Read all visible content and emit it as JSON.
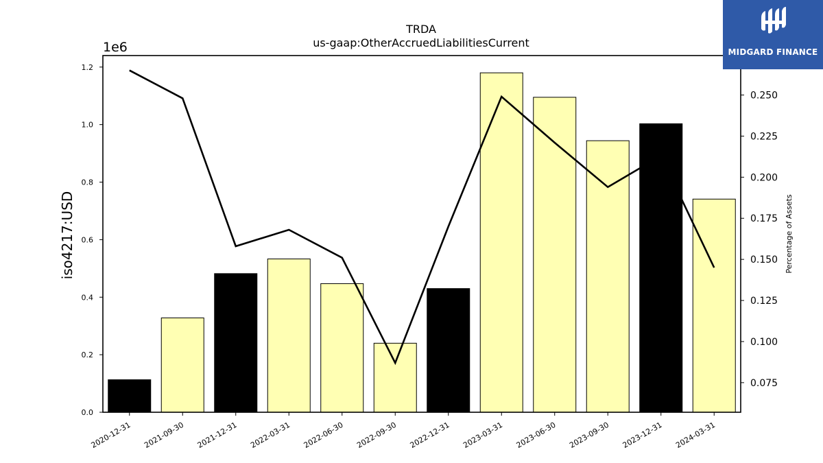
{
  "chart_data": {
    "type": "bar",
    "title": "TRDA",
    "subtitle": "us-gaap:OtherAccruedLiabilitiesCurrent",
    "ylabel": "iso4217:USD",
    "y2label": "Percentage of Assets",
    "y_offset_text": "1e6",
    "categories": [
      "2020-12-31",
      "2021-09-30",
      "2021-12-31",
      "2022-03-31",
      "2022-06-30",
      "2022-09-30",
      "2022-12-31",
      "2023-03-31",
      "2023-06-30",
      "2023-09-30",
      "2023-12-31",
      "2024-03-31"
    ],
    "series": [
      {
        "values": [
          113000,
          328000,
          482000,
          533000,
          447000,
          240000,
          430000,
          1180000,
          1095000,
          944000,
          1003000,
          741000
        ],
        "colors": [
          "#000000",
          "#ffffb3",
          "#000000",
          "#ffffb3",
          "#ffffb3",
          "#ffffb3",
          "#000000",
          "#ffffb3",
          "#ffffb3",
          "#ffffb3",
          "#000000",
          "#ffffb3"
        ]
      },
      {
        "axis": "right",
        "values": [
          0.265,
          0.248,
          0.158,
          0.168,
          0.151,
          0.087,
          0.17,
          0.249,
          0.221,
          0.194,
          0.213,
          0.145
        ]
      }
    ],
    "ylim": [
      0,
      1240000
    ],
    "y2lim": [
      0.057,
      0.274
    ],
    "yticks": [
      0,
      200000,
      400000,
      600000,
      800000,
      1000000,
      1200000
    ],
    "ytick_labels": [
      "0.0",
      "0.2",
      "0.4",
      "0.6",
      "0.8",
      "1.0",
      "1.2"
    ],
    "y2ticks": [
      0.075,
      0.1,
      0.125,
      0.15,
      0.175,
      0.2,
      0.225,
      0.25
    ],
    "y2tick_labels": [
      "0.075",
      "0.100",
      "0.125",
      "0.150",
      "0.175",
      "0.200",
      "0.225",
      "0.250"
    ],
    "grid": false
  },
  "logo": {
    "text": "MIDGARD FINANCE",
    "color": "#2f5aa8"
  }
}
